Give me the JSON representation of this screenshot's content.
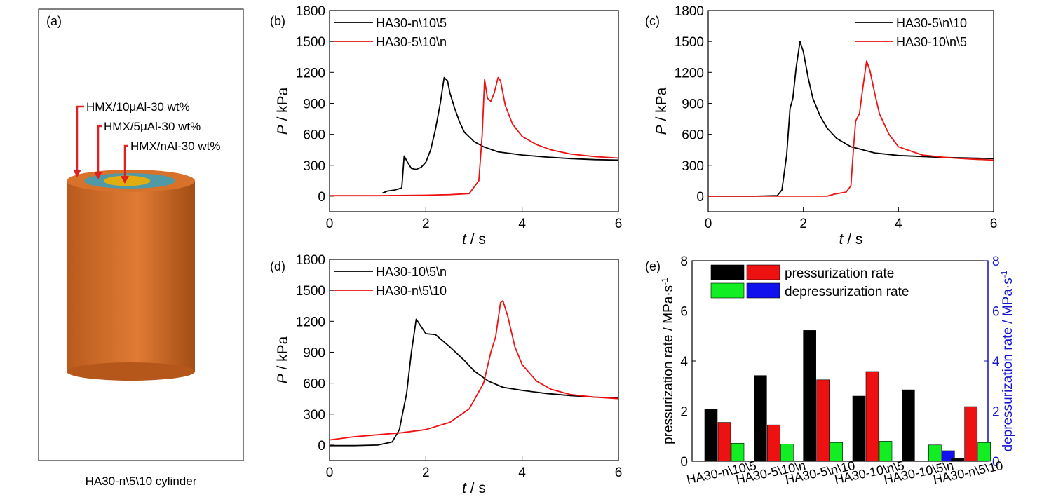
{
  "panel_a": {
    "label": "(a)",
    "caption": "HA30-n\\5\\10 cylinder",
    "layers": [
      {
        "text": "HMX/10μAl-30 wt%",
        "color": "#d8722a"
      },
      {
        "text": "HMX/5μAl-30 wt%",
        "color": "#4f9aa6"
      },
      {
        "text": "HMX/nAl-30 wt%",
        "color": "#e0ad10"
      }
    ],
    "arrow_color": "#e02020"
  },
  "chart_data": [
    {
      "panel": "b",
      "label": "(b)",
      "type": "line",
      "xlabel_italic": "t",
      "xlabel_unit": " / s",
      "ylabel_italic": "P",
      "ylabel_unit": " / kPa",
      "xlim": [
        0,
        6
      ],
      "ylim": [
        -150,
        1800
      ],
      "xticks": [
        0,
        2,
        4,
        6
      ],
      "yticks": [
        0,
        300,
        600,
        900,
        1200,
        1500,
        1800
      ],
      "legend": "top-left",
      "series": [
        {
          "name": "HA30-n\\10\\5",
          "color": "#000000",
          "points": [
            [
              1.1,
              30
            ],
            [
              1.2,
              50
            ],
            [
              1.35,
              60
            ],
            [
              1.5,
              80
            ],
            [
              1.55,
              390
            ],
            [
              1.62,
              330
            ],
            [
              1.7,
              270
            ],
            [
              1.8,
              260
            ],
            [
              1.9,
              280
            ],
            [
              2.0,
              330
            ],
            [
              2.1,
              450
            ],
            [
              2.2,
              650
            ],
            [
              2.3,
              900
            ],
            [
              2.38,
              1150
            ],
            [
              2.45,
              1120
            ],
            [
              2.5,
              1000
            ],
            [
              2.6,
              850
            ],
            [
              2.7,
              720
            ],
            [
              2.8,
              620
            ],
            [
              3.0,
              530
            ],
            [
              3.2,
              480
            ],
            [
              3.5,
              430
            ],
            [
              4.0,
              400
            ],
            [
              4.5,
              380
            ],
            [
              5.0,
              365
            ],
            [
              5.5,
              355
            ],
            [
              6.0,
              350
            ]
          ]
        },
        {
          "name": "HA30-5\\10\\n",
          "color": "#ee1111",
          "points": [
            [
              0.0,
              5
            ],
            [
              1.0,
              5
            ],
            [
              2.0,
              10
            ],
            [
              2.5,
              15
            ],
            [
              2.9,
              25
            ],
            [
              3.1,
              150
            ],
            [
              3.17,
              600
            ],
            [
              3.22,
              1130
            ],
            [
              3.28,
              950
            ],
            [
              3.35,
              920
            ],
            [
              3.42,
              1000
            ],
            [
              3.5,
              1150
            ],
            [
              3.55,
              1120
            ],
            [
              3.65,
              880
            ],
            [
              3.8,
              700
            ],
            [
              4.0,
              580
            ],
            [
              4.3,
              500
            ],
            [
              4.6,
              450
            ],
            [
              5.0,
              410
            ],
            [
              5.5,
              385
            ],
            [
              6.0,
              370
            ]
          ]
        }
      ]
    },
    {
      "panel": "c",
      "label": "(c)",
      "type": "line",
      "xlabel_italic": "t",
      "xlabel_unit": " / s",
      "ylabel_italic": "P",
      "ylabel_unit": " / kPa",
      "xlim": [
        0,
        6
      ],
      "ylim": [
        -150,
        1800
      ],
      "xticks": [
        0,
        2,
        4,
        6
      ],
      "yticks": [
        0,
        300,
        600,
        900,
        1200,
        1500,
        1800
      ],
      "legend": "top-right",
      "series": [
        {
          "name": "HA30-5\\n\\10",
          "color": "#000000",
          "points": [
            [
              0.0,
              0
            ],
            [
              1.0,
              0
            ],
            [
              1.45,
              5
            ],
            [
              1.55,
              60
            ],
            [
              1.65,
              400
            ],
            [
              1.72,
              850
            ],
            [
              1.78,
              950
            ],
            [
              1.85,
              1250
            ],
            [
              1.93,
              1500
            ],
            [
              2.0,
              1400
            ],
            [
              2.1,
              1150
            ],
            [
              2.2,
              950
            ],
            [
              2.35,
              780
            ],
            [
              2.5,
              660
            ],
            [
              2.7,
              560
            ],
            [
              3.0,
              480
            ],
            [
              3.5,
              420
            ],
            [
              4.0,
              395
            ],
            [
              5.0,
              375
            ],
            [
              6.0,
              365
            ]
          ]
        },
        {
          "name": "HA30-10\\n\\5",
          "color": "#ee1111",
          "points": [
            [
              0.0,
              0
            ],
            [
              2.5,
              0
            ],
            [
              2.65,
              20
            ],
            [
              2.9,
              40
            ],
            [
              3.0,
              100
            ],
            [
              3.06,
              500
            ],
            [
              3.1,
              730
            ],
            [
              3.18,
              800
            ],
            [
              3.25,
              1050
            ],
            [
              3.33,
              1310
            ],
            [
              3.4,
              1220
            ],
            [
              3.5,
              1000
            ],
            [
              3.6,
              800
            ],
            [
              3.8,
              600
            ],
            [
              4.0,
              480
            ],
            [
              4.5,
              400
            ],
            [
              5.0,
              375
            ],
            [
              5.5,
              360
            ],
            [
              6.0,
              350
            ]
          ]
        }
      ]
    },
    {
      "panel": "d",
      "label": "(d)",
      "type": "line",
      "xlabel_italic": "t",
      "xlabel_unit": " / s",
      "ylabel_italic": "P",
      "ylabel_unit": " / kPa",
      "xlim": [
        0,
        6
      ],
      "ylim": [
        -150,
        1800
      ],
      "xticks": [
        0,
        2,
        4,
        6
      ],
      "yticks": [
        0,
        300,
        600,
        900,
        1200,
        1500,
        1800
      ],
      "legend": "top-left",
      "series": [
        {
          "name": "HA30-10\\5\\n",
          "color": "#000000",
          "points": [
            [
              0.0,
              -5
            ],
            [
              0.5,
              -5
            ],
            [
              1.0,
              0
            ],
            [
              1.3,
              30
            ],
            [
              1.45,
              150
            ],
            [
              1.6,
              500
            ],
            [
              1.7,
              900
            ],
            [
              1.8,
              1220
            ],
            [
              1.9,
              1150
            ],
            [
              2.0,
              1080
            ],
            [
              2.2,
              1070
            ],
            [
              2.5,
              950
            ],
            [
              2.8,
              820
            ],
            [
              3.0,
              720
            ],
            [
              3.3,
              620
            ],
            [
              3.6,
              560
            ],
            [
              4.0,
              530
            ],
            [
              4.5,
              500
            ],
            [
              5.0,
              480
            ],
            [
              5.5,
              465
            ],
            [
              6.0,
              455
            ]
          ]
        },
        {
          "name": "HA30-n\\5\\10",
          "color": "#ee1111",
          "points": [
            [
              0.0,
              50
            ],
            [
              0.5,
              80
            ],
            [
              1.0,
              100
            ],
            [
              1.5,
              120
            ],
            [
              2.0,
              150
            ],
            [
              2.5,
              220
            ],
            [
              2.9,
              350
            ],
            [
              3.2,
              600
            ],
            [
              3.35,
              900
            ],
            [
              3.45,
              1050
            ],
            [
              3.55,
              1380
            ],
            [
              3.6,
              1400
            ],
            [
              3.7,
              1250
            ],
            [
              3.85,
              950
            ],
            [
              4.0,
              780
            ],
            [
              4.3,
              620
            ],
            [
              4.6,
              540
            ],
            [
              5.0,
              490
            ],
            [
              5.5,
              465
            ],
            [
              6.0,
              450
            ]
          ]
        }
      ]
    },
    {
      "panel": "e",
      "label": "(e)",
      "type": "bar",
      "ylabel": "pressurization rate / MPa·s",
      "ylabel_sup": "-1",
      "y2label": "depressurization rate / MPa·s",
      "y2label_sup": "-1",
      "ylim": [
        0,
        8
      ],
      "y2lim": [
        0,
        8
      ],
      "yticks": [
        0,
        2,
        4,
        6,
        8
      ],
      "categories": [
        "HA30-n\\10\\5",
        "HA30-5\\10\\n",
        "HA30-5\\n\\10",
        "HA30-10\\n\\5",
        "HA30-10\\5\\n",
        "HA30-n\\5\\10"
      ],
      "legend": "top-left",
      "legend_labels": [
        "pressurization rate",
        "depressurization rate"
      ],
      "series": [
        {
          "role": "pressurization",
          "color": "#000000",
          "values": [
            2.08,
            3.42,
            5.22,
            2.6,
            2.85,
            0.12
          ]
        },
        {
          "role": "pressurization",
          "color": "#ee1111",
          "values": [
            1.55,
            1.45,
            3.25,
            3.58,
            null,
            2.18
          ]
        },
        {
          "role": "depressurization",
          "color": "#11ee22",
          "values": [
            0.72,
            0.68,
            0.75,
            0.8,
            0.65,
            0.75
          ]
        },
        {
          "role": "depressurization",
          "color": "#1111ee",
          "values": [
            null,
            null,
            null,
            null,
            0.42,
            null
          ]
        }
      ],
      "axis2_color": "#1515cc"
    }
  ]
}
